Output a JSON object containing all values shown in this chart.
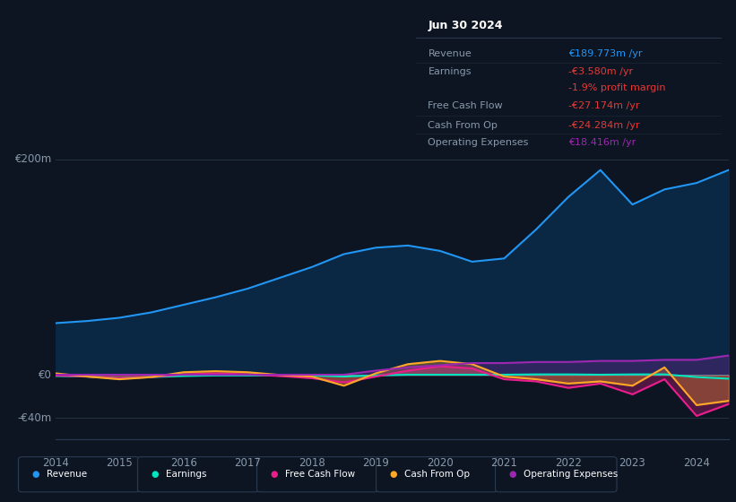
{
  "background_color": "#0d1523",
  "plot_bg_color": "#0d1523",
  "text_color": "#8899aa",
  "white_color": "#ffffff",
  "years": [
    2014,
    2014.5,
    2015,
    2015.5,
    2016,
    2016.5,
    2017,
    2017.5,
    2018,
    2018.5,
    2019,
    2019.5,
    2020,
    2020.5,
    2021,
    2021.5,
    2022,
    2022.5,
    2023,
    2023.5,
    2024,
    2024.5
  ],
  "revenue": [
    48,
    50,
    53,
    58,
    65,
    72,
    80,
    90,
    100,
    112,
    118,
    120,
    115,
    105,
    108,
    135,
    165,
    190,
    158,
    172,
    178,
    190
  ],
  "earnings": [
    -1,
    -1.5,
    -3,
    -2,
    -1,
    -0.5,
    -0.5,
    -0.3,
    -0.5,
    -1.5,
    -0.5,
    0.2,
    0.2,
    0.2,
    0.2,
    0.5,
    0.5,
    0.2,
    0.5,
    0.5,
    -2,
    -3.5
  ],
  "free_cash_flow": [
    -0.5,
    -1.5,
    -3,
    -2,
    0.5,
    1.5,
    0.5,
    -1,
    -3,
    -7,
    -1.5,
    4,
    8,
    6,
    -4,
    -6,
    -12,
    -8,
    -18,
    -4,
    -38,
    -27
  ],
  "cash_from_op": [
    1.5,
    -1.5,
    -4,
    -2,
    2.5,
    3.5,
    2.5,
    0,
    -1.5,
    -10,
    1.5,
    10,
    13,
    10,
    -1.5,
    -4,
    -8,
    -6,
    -10,
    7,
    -28,
    -24
  ],
  "operating_exp": [
    0.2,
    0.2,
    0.2,
    0.2,
    0.2,
    0.2,
    0.2,
    0.2,
    0.2,
    0.2,
    4,
    7,
    9,
    11,
    11,
    12,
    12,
    13,
    13,
    14,
    14,
    18
  ],
  "ylim_min": -55,
  "ylim_max": 215,
  "zero_line": 0,
  "grid200": 200,
  "gridm40": -40,
  "xtick_years": [
    2014,
    2015,
    2016,
    2017,
    2018,
    2019,
    2020,
    2021,
    2022,
    2023,
    2024
  ],
  "revenue_color": "#2196f3",
  "revenue_fill_color": "#0a2744",
  "earnings_color": "#00e5c0",
  "fcf_color": "#e91e8c",
  "cfo_color": "#ffa726",
  "opex_color": "#9c27b0",
  "line_width": 1.5,
  "legend_items": [
    "Revenue",
    "Earnings",
    "Free Cash Flow",
    "Cash From Op",
    "Operating Expenses"
  ],
  "legend_colors": [
    "#2196f3",
    "#00e5c0",
    "#e91e8c",
    "#ffa726",
    "#9c27b0"
  ],
  "tooltip_bg": "#080e18",
  "tooltip_border": "#2a3a50",
  "tooltip_date": "Jun 30 2024",
  "tooltip_rows": [
    {
      "label": "Revenue",
      "value": "€189.773m /yr",
      "value_color": "#2196f3"
    },
    {
      "label": "Earnings",
      "value": "-€3.580m /yr",
      "value_color": "#e53935"
    },
    {
      "label": "",
      "value": "-1.9% profit margin",
      "value_color": "#e53935"
    },
    {
      "label": "Free Cash Flow",
      "value": "-€27.174m /yr",
      "value_color": "#e53935"
    },
    {
      "label": "Cash From Op",
      "value": "-€24.284m /yr",
      "value_color": "#e53935"
    },
    {
      "label": "Operating Expenses",
      "value": "€18.416m /yr",
      "value_color": "#9c27b0"
    }
  ]
}
